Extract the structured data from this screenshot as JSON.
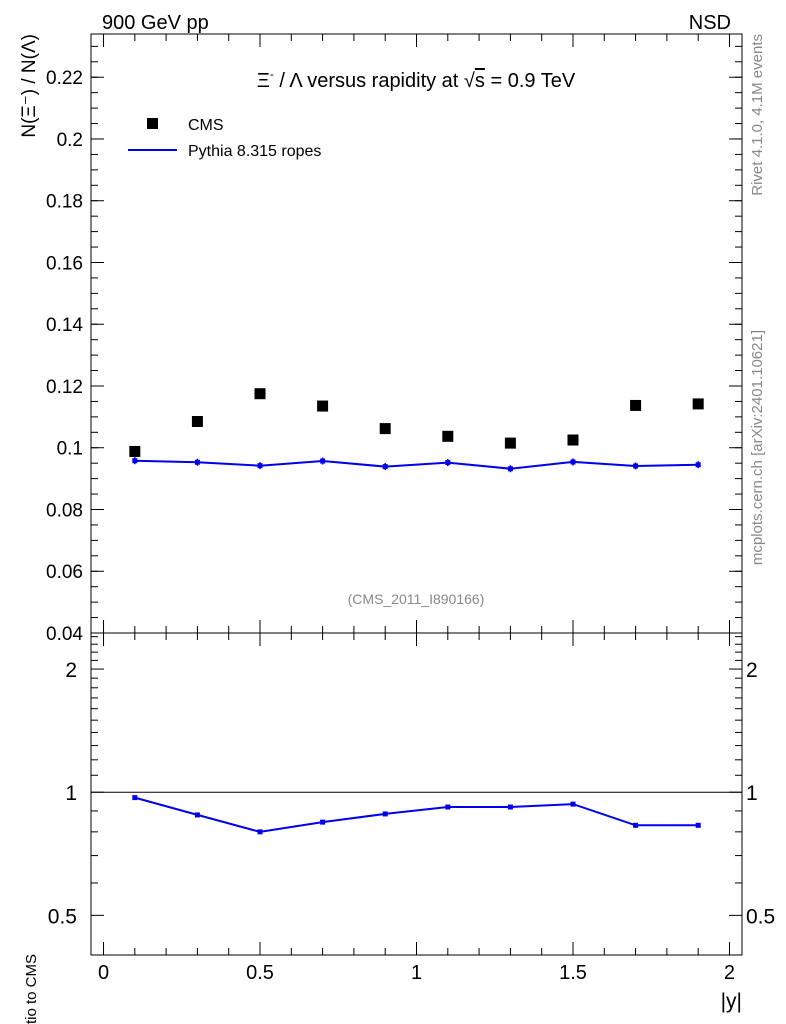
{
  "header": {
    "left_label": "900 GeV pp",
    "right_label": "NSD",
    "source_tag": "(CMS_2011_I890166)",
    "side_label_top": "Rivet 4.1.0,  4.1M events",
    "side_label_bottom": "mcplots.cern.ch [arXiv:2401.10621]"
  },
  "chart_data": [
    {
      "type": "scatter",
      "panel": "main",
      "title_parts": {
        "xi_symbol": "Ξ",
        "xi_charge": "-",
        "rest": " / Λ versus rapidity at ",
        "sqrt": "√",
        "s": "s",
        "energy": " = 0.9 TeV"
      },
      "ylabel": "N(Ξ⁻)  /  N(Λ)",
      "xlabel": "",
      "xlim": [
        -0.04,
        2.04
      ],
      "ylim": [
        0.04,
        0.234
      ],
      "yticks": [
        0.04,
        0.06,
        0.08,
        0.1,
        0.12,
        0.14,
        0.16,
        0.18,
        0.2,
        0.22
      ],
      "ytick_labels": [
        "0.04",
        "0.06",
        "0.08",
        "0.1",
        "0.12",
        "0.14",
        "0.16",
        "0.18",
        "0.2",
        "0.22"
      ],
      "legend_position": "top-left",
      "series": [
        {
          "name": "CMS",
          "style": "markers",
          "color": "#000000",
          "x": [
            0.1,
            0.3,
            0.5,
            0.7,
            0.9,
            1.1,
            1.3,
            1.5,
            1.7,
            1.9
          ],
          "values": [
            0.0988,
            0.1085,
            0.1175,
            0.1135,
            0.1062,
            0.1037,
            0.1015,
            0.1025,
            0.1137,
            0.1142
          ]
        },
        {
          "name": "Pythia 8.315 ropes",
          "style": "line",
          "color": "#0000ee",
          "x": [
            0.1,
            0.3,
            0.5,
            0.7,
            0.9,
            1.1,
            1.3,
            1.5,
            1.7,
            1.9
          ],
          "values": [
            0.0958,
            0.0953,
            0.0942,
            0.0957,
            0.0939,
            0.0952,
            0.0932,
            0.0954,
            0.0941,
            0.0945
          ]
        }
      ]
    },
    {
      "type": "line",
      "panel": "ratio",
      "ylabel": "Ratio to CMS",
      "xlabel": "|y|",
      "xlim": [
        -0.04,
        2.04
      ],
      "ylim": [
        0.4,
        2.45
      ],
      "log_y": true,
      "reference_line": 1,
      "yticks": [
        0.5,
        1,
        2
      ],
      "ytick_labels": [
        "0.5",
        "1",
        "2"
      ],
      "xticks": [
        0,
        0.5,
        1,
        1.5,
        2
      ],
      "xtick_labels": [
        "0",
        "0.5",
        "1",
        "1.5",
        "2"
      ],
      "series": [
        {
          "name": "Pythia 8.315 ropes",
          "color": "#0000ee",
          "x": [
            0.1,
            0.3,
            0.5,
            0.7,
            0.9,
            1.1,
            1.3,
            1.5,
            1.7,
            1.9
          ],
          "values": [
            0.97,
            0.88,
            0.8,
            0.845,
            0.885,
            0.92,
            0.92,
            0.935,
            0.83,
            0.83
          ]
        }
      ]
    }
  ]
}
